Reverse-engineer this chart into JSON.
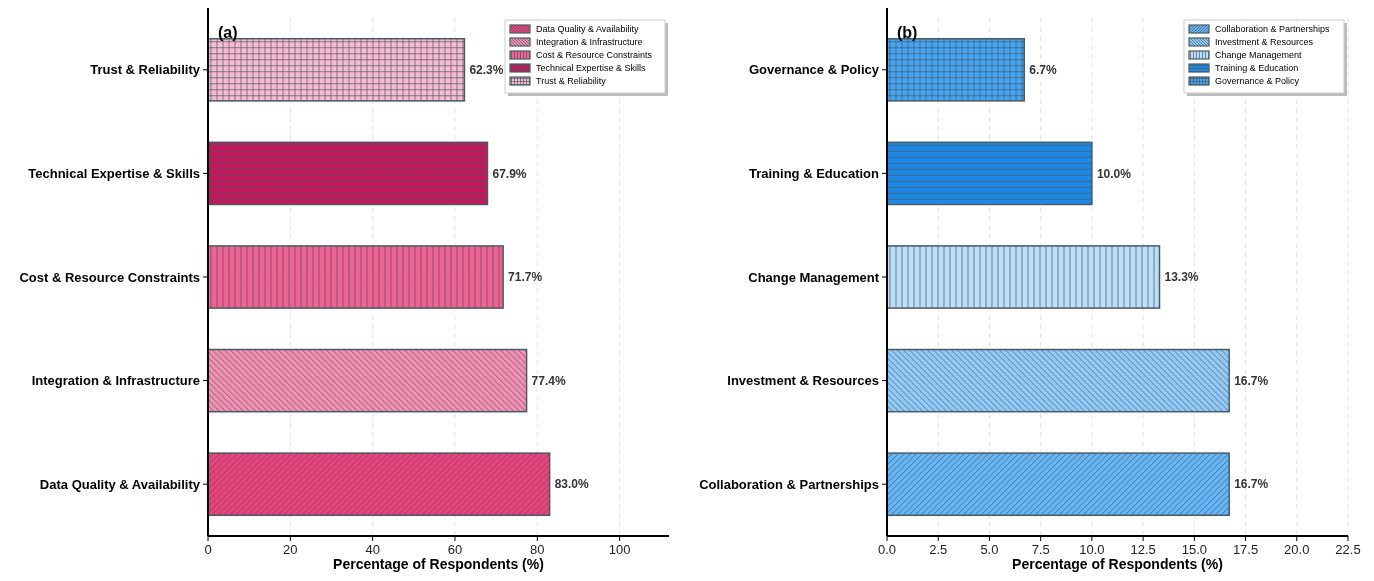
{
  "chart_data": [
    {
      "type": "bar",
      "orientation": "horizontal",
      "title": "(a)",
      "xlabel": "Percentage of Respondents (%)",
      "categories": [
        "Trust & Reliability",
        "Technical Expertise & Skills",
        "Cost & Resource Constraints",
        "Integration & Infrastructure",
        "Data Quality & Availability"
      ],
      "series": [
        {
          "name": "Data Quality & Availability",
          "color": "#ec407a",
          "values": [
            null,
            null,
            null,
            null,
            83.0
          ]
        },
        {
          "name": "Integration & Infrastructure",
          "color": "#f48fb1",
          "values": [
            null,
            null,
            null,
            77.4,
            null
          ]
        },
        {
          "name": "Cost & Resource Constraints",
          "color": "#f06292",
          "values": [
            null,
            null,
            71.7,
            null,
            null
          ]
        },
        {
          "name": "Technical Expertise & Skills",
          "color": "#c2185b",
          "values": [
            null,
            67.9,
            null,
            null,
            null
          ]
        },
        {
          "name": "Trust & Reliability",
          "color": "#f8bbd0",
          "values": [
            62.3,
            null,
            null,
            null,
            null
          ]
        }
      ],
      "value_labels": [
        "62.3%",
        "67.9%",
        "71.7%",
        "77.4%",
        "83.0%"
      ],
      "xlim": [
        0,
        112
      ],
      "xticks": [
        0,
        20,
        40,
        60,
        80,
        100
      ],
      "grid": "x",
      "legend": "top right"
    },
    {
      "type": "bar",
      "orientation": "horizontal",
      "title": "(b)",
      "xlabel": "Percentage of Respondents (%)",
      "categories": [
        "Governance & Policy",
        "Training & Education",
        "Change Management",
        "Investment & Resources",
        "Collaboration & Partnerships"
      ],
      "series": [
        {
          "name": "Collaboration & Partnerships",
          "color": "#64b5f6",
          "values": [
            null,
            null,
            null,
            null,
            16.7
          ]
        },
        {
          "name": "Investment & Resources",
          "color": "#90caf9",
          "values": [
            null,
            null,
            null,
            16.7,
            null
          ]
        },
        {
          "name": "Change Management",
          "color": "#bbdefb",
          "values": [
            null,
            null,
            13.3,
            null,
            null
          ]
        },
        {
          "name": "Training & Education",
          "color": "#1e88e5",
          "values": [
            null,
            10.0,
            null,
            null,
            null
          ]
        },
        {
          "name": "Governance & Policy",
          "color": "#42a5f5",
          "values": [
            6.7,
            null,
            null,
            null,
            null
          ]
        }
      ],
      "value_labels": [
        "6.7%",
        "10.0%",
        "13.3%",
        "16.7%",
        "16.7%"
      ],
      "xlim": [
        0,
        22.5
      ],
      "xticks": [
        {
          "value": 0,
          "label": "0.0"
        },
        2.5,
        {
          "value": 5,
          "label": "5.0"
        },
        7.5,
        {
          "value": 10,
          "label": "10.0"
        },
        12.5,
        {
          "value": 15,
          "label": "15.0"
        },
        17.5,
        {
          "value": 20,
          "label": "20.0"
        },
        22.5
      ],
      "grid": "x",
      "legend": "top right"
    }
  ]
}
